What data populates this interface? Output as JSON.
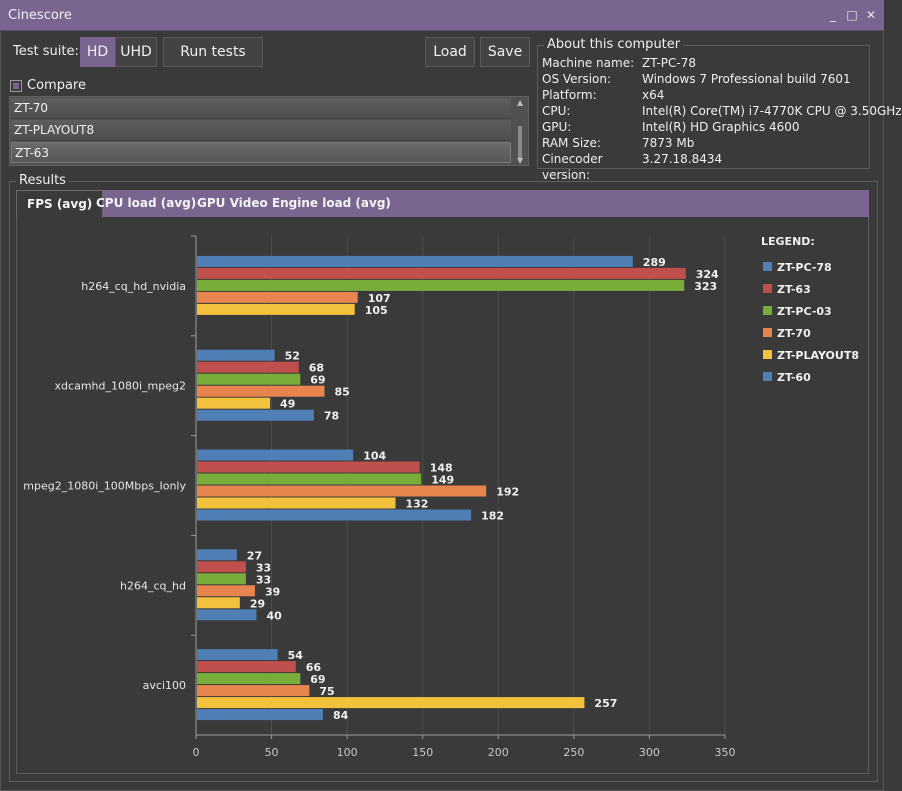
{
  "window": {
    "title": "Cinescore",
    "controls": [
      "_",
      "□",
      "✕"
    ]
  },
  "toolbar": {
    "suite_label": "Test suite:",
    "hd_label": "HD",
    "uhd_label": "UHD",
    "run_label": "Run tests",
    "load_label": "Load",
    "save_label": "Save"
  },
  "compare": {
    "label": "Compare",
    "checked": true,
    "items": [
      "ZT-70",
      "ZT-PLAYOUT8",
      "ZT-63"
    ],
    "selected_index": 2
  },
  "about": {
    "title": "About this computer",
    "rows": [
      {
        "key": "Machine name:",
        "value": "ZT-PC-78"
      },
      {
        "key": "OS Version:",
        "value": "Windows 7 Professional build 7601"
      },
      {
        "key": "Platform:",
        "value": "x64"
      },
      {
        "key": "CPU:",
        "value": "Intel(R) Core(TM) i7-4770K CPU @ 3.50GHz"
      },
      {
        "key": "GPU:",
        "value": "Intel(R) HD Graphics 4600"
      },
      {
        "key": "RAM Size:",
        "value": "7873 Mb"
      },
      {
        "key": "Cinecoder version:",
        "value": "3.27.18.8434"
      }
    ]
  },
  "results": {
    "title": "Results",
    "tabs": [
      "FPS (avg)",
      "CPU load (avg)",
      "GPU Video Engine load (avg)"
    ],
    "active_tab": 0
  },
  "colors": {
    "accent": "#7a6490",
    "series": [
      "#4f7fb4",
      "#c0504d",
      "#79ad3a",
      "#e8844e",
      "#f2c23c",
      "#4f7fb4"
    ]
  },
  "chart_data": {
    "type": "bar",
    "orientation": "horizontal",
    "title": "",
    "xlabel": "",
    "ylabel": "",
    "xlim": [
      0,
      350
    ],
    "xticks": [
      0,
      50,
      100,
      150,
      200,
      250,
      300,
      350
    ],
    "grid": true,
    "legend_title": "LEGEND:",
    "legend_position": "right",
    "categories": [
      "h264_cq_hd_nvidia",
      "xdcamhd_1080i_mpeg2",
      "mpeg2_1080i_100Mbps_Ionly",
      "h264_cq_hd",
      "avci100"
    ],
    "series": [
      {
        "name": "ZT-PC-78",
        "values": [
          289,
          52,
          104,
          27,
          54
        ]
      },
      {
        "name": "ZT-63",
        "values": [
          324,
          68,
          148,
          33,
          66
        ]
      },
      {
        "name": "ZT-PC-03",
        "values": [
          323,
          69,
          149,
          33,
          69
        ]
      },
      {
        "name": "ZT-70",
        "values": [
          107,
          85,
          192,
          39,
          75
        ]
      },
      {
        "name": "ZT-PLAYOUT8",
        "values": [
          105,
          49,
          132,
          29,
          257
        ]
      },
      {
        "name": "ZT-60",
        "values": [
          null,
          78,
          182,
          40,
          84
        ]
      }
    ]
  }
}
